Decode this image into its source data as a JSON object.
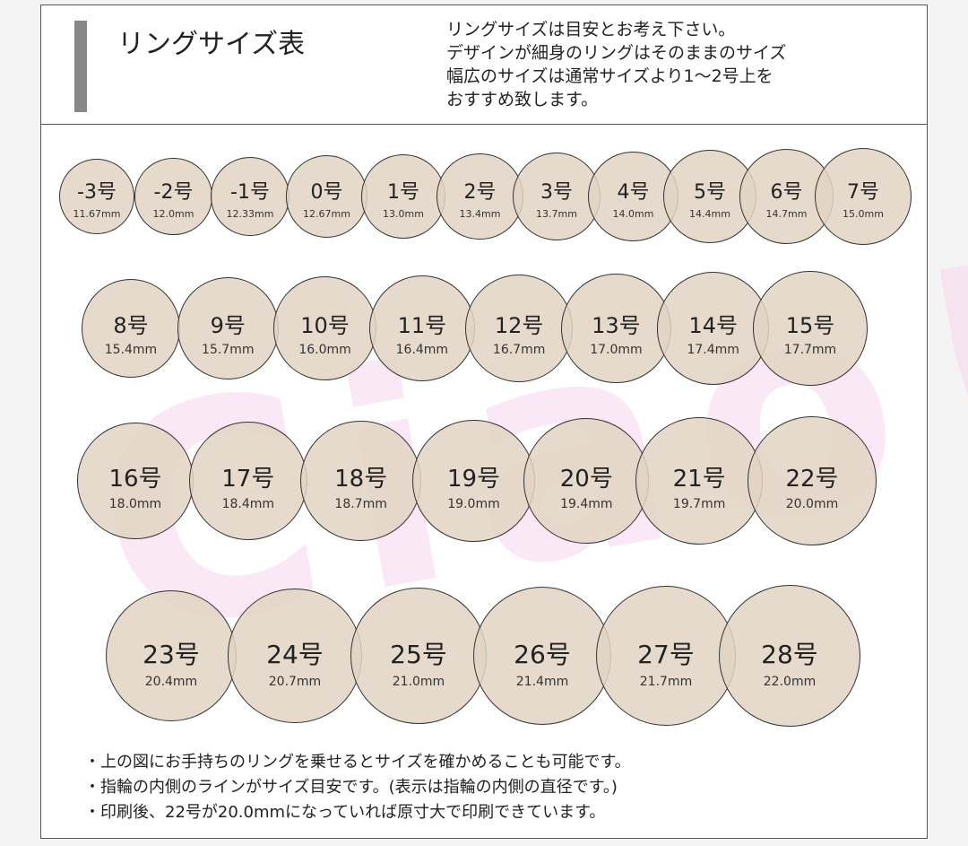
{
  "header": {
    "title": "リングサイズ表",
    "notes": [
      "リングサイズは目安とお考え下さい。",
      "デザインが細身のリングはそのままのサイズ",
      "幅広のサイズは通常サイズより1～2号上を",
      "おすすめ致します。"
    ]
  },
  "watermark": "Ciao!",
  "rows": [
    [
      {
        "size": "-3号",
        "mm": "11.67mm"
      },
      {
        "size": "-2号",
        "mm": "12.0mm"
      },
      {
        "size": "-1号",
        "mm": "12.33mm"
      },
      {
        "size": "0号",
        "mm": "12.67mm"
      },
      {
        "size": "1号",
        "mm": "13.0mm"
      },
      {
        "size": "2号",
        "mm": "13.4mm"
      },
      {
        "size": "3号",
        "mm": "13.7mm"
      },
      {
        "size": "4号",
        "mm": "14.0mm"
      },
      {
        "size": "5号",
        "mm": "14.4mm"
      },
      {
        "size": "6号",
        "mm": "14.7mm"
      },
      {
        "size": "7号",
        "mm": "15.0mm"
      }
    ],
    [
      {
        "size": "8号",
        "mm": "15.4mm"
      },
      {
        "size": "9号",
        "mm": "15.7mm"
      },
      {
        "size": "10号",
        "mm": "16.0mm"
      },
      {
        "size": "11号",
        "mm": "16.4mm"
      },
      {
        "size": "12号",
        "mm": "16.7mm"
      },
      {
        "size": "13号",
        "mm": "17.0mm"
      },
      {
        "size": "14号",
        "mm": "17.4mm"
      },
      {
        "size": "15号",
        "mm": "17.7mm"
      }
    ],
    [
      {
        "size": "16号",
        "mm": "18.0mm"
      },
      {
        "size": "17号",
        "mm": "18.4mm"
      },
      {
        "size": "18号",
        "mm": "18.7mm"
      },
      {
        "size": "19号",
        "mm": "19.0mm"
      },
      {
        "size": "20号",
        "mm": "19.4mm"
      },
      {
        "size": "21号",
        "mm": "19.7mm"
      },
      {
        "size": "22号",
        "mm": "20.0mm"
      }
    ],
    [
      {
        "size": "23号",
        "mm": "20.4mm"
      },
      {
        "size": "24号",
        "mm": "20.7mm"
      },
      {
        "size": "25号",
        "mm": "21.0mm"
      },
      {
        "size": "26号",
        "mm": "21.4mm"
      },
      {
        "size": "27号",
        "mm": "21.7mm"
      },
      {
        "size": "28号",
        "mm": "22.0mm"
      }
    ]
  ],
  "footer": [
    "・上の図にお手持ちのリングを乗せるとサイズを確かめることも可能です。",
    "・指輪の内側のラインがサイズ目安です。(表示は指輪の内側の直径です。)",
    "・印刷後、22号が20.0mmになっていれば原寸大で印刷できています。"
  ]
}
